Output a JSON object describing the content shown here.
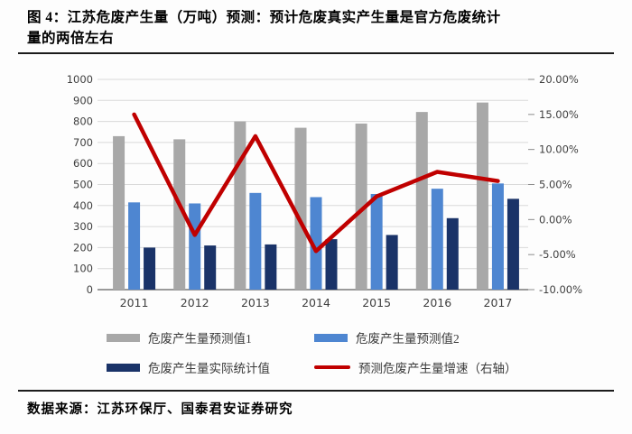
{
  "page": {
    "title_line1": "图 4：江苏危废产生量（万吨）预测：预计危废真实产生量是官方危废统计",
    "title_line2": "量的两倍左右",
    "source": "数据来源：江苏环保厅、国泰君安证券研究"
  },
  "colors": {
    "bar_gray": "#a8a8a8",
    "bar_blue": "#4e86d1",
    "bar_navy": "#1a3368",
    "line_red": "#c00000",
    "gridline": "#d9d9d9",
    "axis_line": "#8c8c8c",
    "tick_text": "#3f3f3f",
    "divider": "#1c1c1c"
  },
  "chart_data": {
    "type": "bar",
    "subtype": "grouped-bars-with-line",
    "categories": [
      "2011",
      "2012",
      "2013",
      "2014",
      "2015",
      "2016",
      "2017"
    ],
    "series": [
      {
        "name": "危废产生量预测值1",
        "type": "bar",
        "axis": "left",
        "color": "#a8a8a8",
        "values": [
          730,
          715,
          800,
          770,
          790,
          845,
          890
        ]
      },
      {
        "name": "危废产生量预测值2",
        "type": "bar",
        "axis": "left",
        "color": "#4e86d1",
        "values": [
          415,
          410,
          460,
          440,
          455,
          480,
          505
        ]
      },
      {
        "name": "危废产生量实际统计值",
        "type": "bar",
        "axis": "left",
        "color": "#1a3368",
        "values": [
          200,
          210,
          215,
          240,
          260,
          340,
          432
        ]
      },
      {
        "name": "预测危废产生量增速（右轴）",
        "type": "line",
        "axis": "right",
        "color": "#c00000",
        "values": [
          15.0,
          -2.2,
          11.9,
          -4.5,
          3.3,
          6.8,
          5.5
        ]
      }
    ],
    "left_axis": {
      "min": 0,
      "max": 1000,
      "step": 100,
      "ticks": [
        "0",
        "100",
        "200",
        "300",
        "400",
        "500",
        "600",
        "700",
        "800",
        "900",
        "1000"
      ]
    },
    "right_axis": {
      "min": -10,
      "max": 20,
      "step": 5,
      "ticks": [
        "-10.00%",
        "-5.00%",
        "0.00%",
        "5.00%",
        "10.00%",
        "15.00%",
        "20.00%"
      ]
    },
    "grid": true,
    "legend_position": "bottom"
  }
}
